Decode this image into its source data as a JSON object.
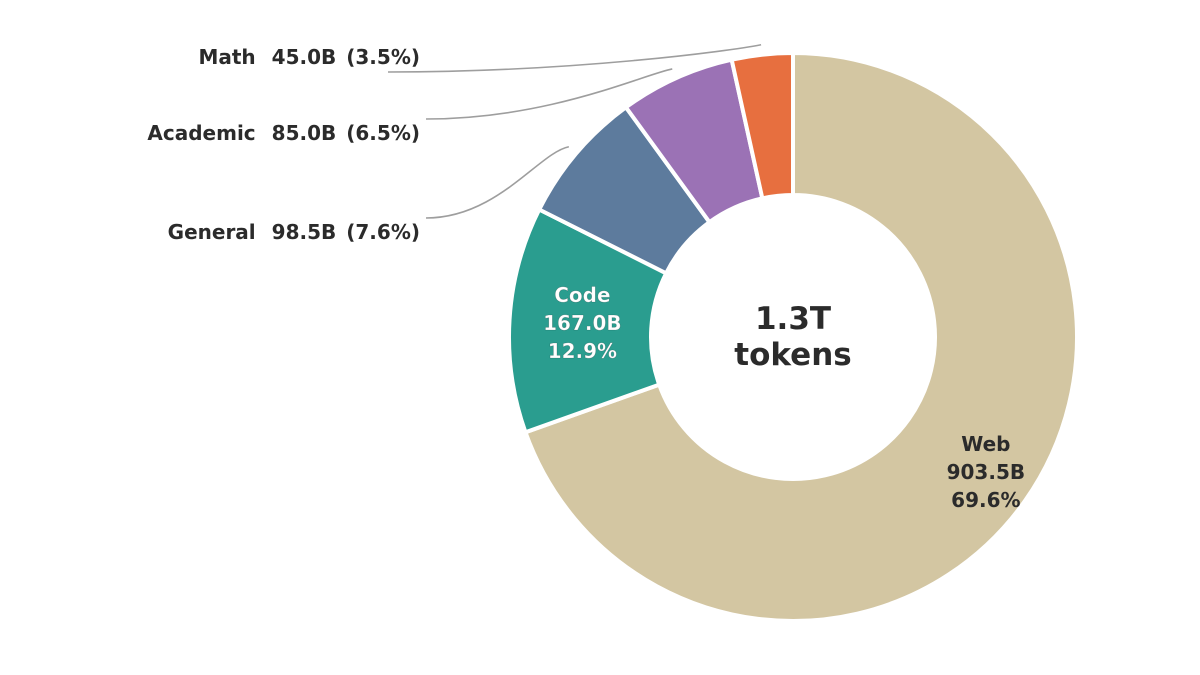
{
  "chart_data": {
    "type": "pie",
    "variant": "donut",
    "center_label": [
      "1.3T",
      "tokens"
    ],
    "legend": "none",
    "slices": [
      {
        "name": "Web",
        "value": 903.5,
        "value_label": "903.5B",
        "percent_label": "69.6%",
        "color": "#d3c6a2",
        "label_style": "inside-dark"
      },
      {
        "name": "Code",
        "value": 167.0,
        "value_label": "167.0B",
        "percent_label": "12.9%",
        "color": "#2a9d8f",
        "label_style": "inside-light"
      },
      {
        "name": "General",
        "value": 98.5,
        "value_label": "98.5B",
        "percent_label": "7.6%",
        "color": "#5d7b9d",
        "label_style": "outside"
      },
      {
        "name": "Academic",
        "value": 85.0,
        "value_label": "85.0B",
        "percent_label": "6.5%",
        "color": "#9b72b5",
        "label_style": "outside"
      },
      {
        "name": "Math",
        "value": 45.0,
        "value_label": "45.0B",
        "percent_label": "3.5%",
        "color": "#e76f3f",
        "label_style": "outside"
      }
    ]
  }
}
